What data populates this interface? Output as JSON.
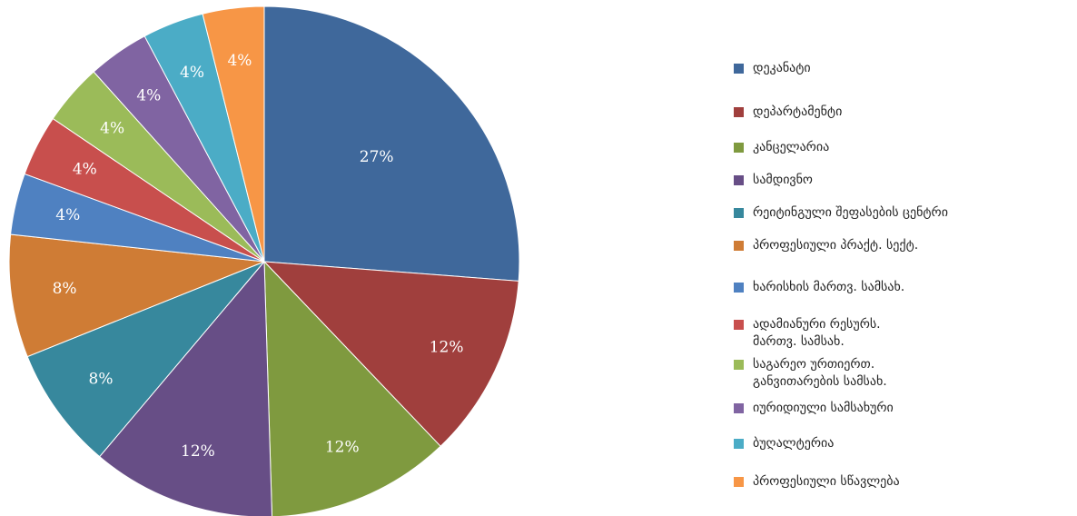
{
  "chart_data": {
    "type": "pie",
    "categories": [
      "დეკანატი",
      "დეპარტამენტი",
      "კანცელარია",
      "სამდივნო",
      "რეიტინგული შეფასების ცენტრი",
      "პროფესიული პრაქტ. სექტ.",
      "ხარისხის მართვ. სამსახ.",
      "ადამიანური რესურს.\nმართვ.  სამსახ.",
      "საგარეო ურთიერთ.\nგანვითარების სამსახ.",
      "იურიდიული სამსახური",
      "ბუღალტერია",
      "პროფესიული სწავლება"
    ],
    "values": [
      27,
      12,
      12,
      12,
      8,
      8,
      4,
      4,
      4,
      4,
      4,
      4
    ],
    "value_labels": [
      "27%",
      "12%",
      "12%",
      "12%",
      "8%",
      "8%",
      "4%",
      "4%",
      "4%",
      "4%",
      "4%",
      "4%"
    ],
    "colors": [
      "#3f689b",
      "#a03f3d",
      "#7f9a3f",
      "#674e86",
      "#37889d",
      "#cf7c35",
      "#4f81c1",
      "#c84f4d",
      "#9bbb59",
      "#8064a2",
      "#4bacc6",
      "#f79646"
    ],
    "legend": "right"
  }
}
